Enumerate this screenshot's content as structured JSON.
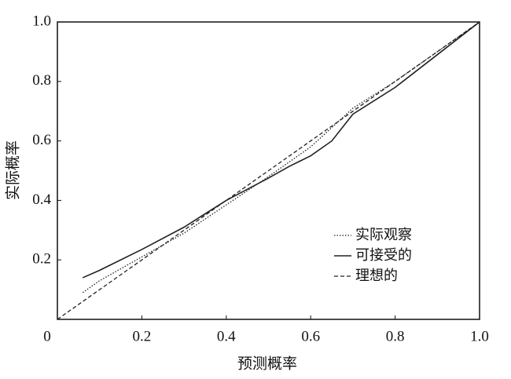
{
  "chart_data": {
    "type": "line",
    "x_label": "预测概率",
    "y_label": "实际概率",
    "xlim": [
      0,
      1
    ],
    "ylim": [
      0,
      1
    ],
    "xticks": [
      0,
      0.2,
      0.4,
      0.6,
      0.8,
      {
        "value": 1,
        "label": "1.0"
      }
    ],
    "yticks": [
      0.2,
      0.4,
      0.6,
      0.8,
      {
        "value": 1,
        "label": "1.0"
      }
    ],
    "legend": "lower right",
    "series": [
      {
        "name": "实际观察",
        "color": "#222",
        "style": "dotted",
        "x": [
          0.06,
          0.1,
          0.2,
          0.3,
          0.4,
          0.5,
          0.6,
          0.7,
          0.8,
          0.9,
          1.0
        ],
        "values": [
          0.09,
          0.13,
          0.21,
          0.29,
          0.385,
          0.48,
          0.58,
          0.71,
          0.8,
          0.9,
          1.0
        ]
      },
      {
        "name": "可接受的",
        "color": "#222",
        "style": "solid",
        "x": [
          0.06,
          0.1,
          0.2,
          0.3,
          0.4,
          0.5,
          0.55,
          0.6,
          0.65,
          0.7,
          0.8,
          0.9,
          1.0
        ],
        "values": [
          0.14,
          0.165,
          0.235,
          0.31,
          0.4,
          0.475,
          0.515,
          0.55,
          0.6,
          0.69,
          0.78,
          0.89,
          1.0
        ]
      },
      {
        "name": "理想的",
        "color": "#222",
        "style": "dashed",
        "x": [
          0,
          1
        ],
        "values": [
          0,
          1
        ]
      }
    ]
  }
}
